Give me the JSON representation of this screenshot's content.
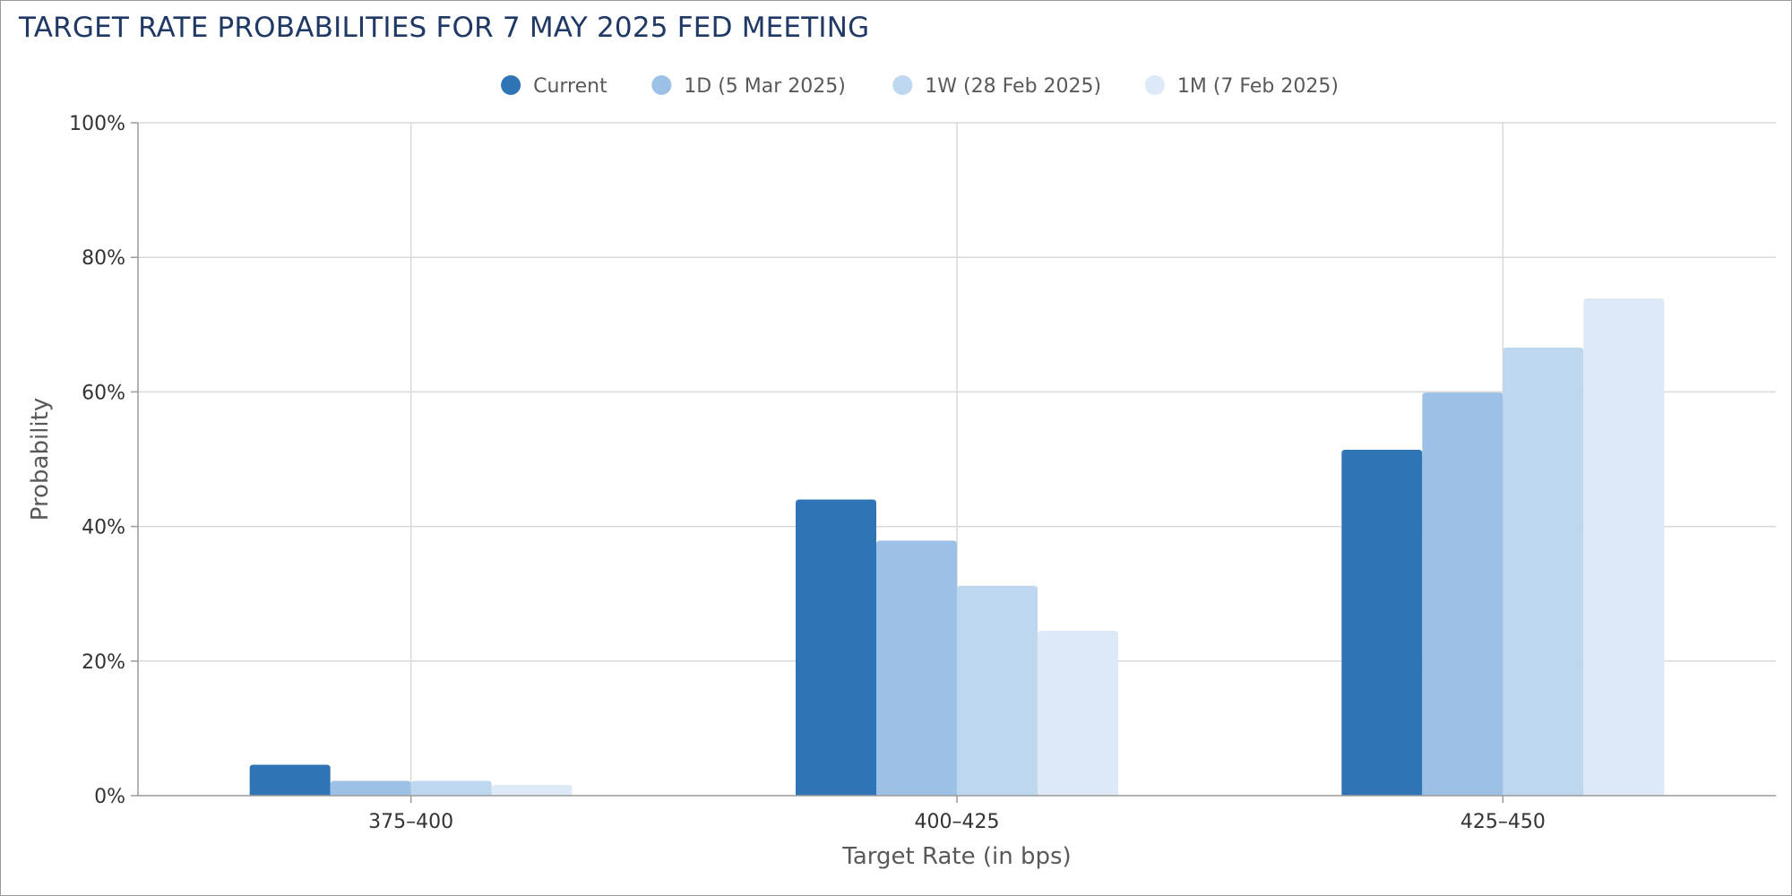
{
  "title": "TARGET RATE PROBABILITIES FOR 7 MAY 2025 FED MEETING",
  "chart_data": {
    "type": "bar",
    "title": "TARGET RATE PROBABILITIES FOR 7 MAY 2025 FED MEETING",
    "xlabel": "Target Rate (in bps)",
    "ylabel": "Probability",
    "categories": [
      "375-400",
      "400-425",
      "425-450"
    ],
    "ylim": [
      0,
      100
    ],
    "yticks": [
      0,
      20,
      40,
      60,
      80,
      100
    ],
    "ytick_labels": [
      "0%",
      "20%",
      "40%",
      "60%",
      "80%",
      "100%"
    ],
    "grid": true,
    "legend_position": "top-center",
    "series": [
      {
        "name": "Current",
        "color": "#2f74b5",
        "values": [
          4.6,
          44.0,
          51.4
        ]
      },
      {
        "name": "1D (5 Mar 2025)",
        "color": "#9dc1e6",
        "values": [
          2.2,
          37.9,
          59.9
        ]
      },
      {
        "name": "1W (28 Feb 2025)",
        "color": "#bdd7ee",
        "values": [
          2.2,
          31.2,
          66.6
        ]
      },
      {
        "name": "1M (7 Feb 2025)",
        "color": "#dde9f6",
        "values": [
          1.6,
          24.5,
          73.9
        ]
      }
    ]
  }
}
